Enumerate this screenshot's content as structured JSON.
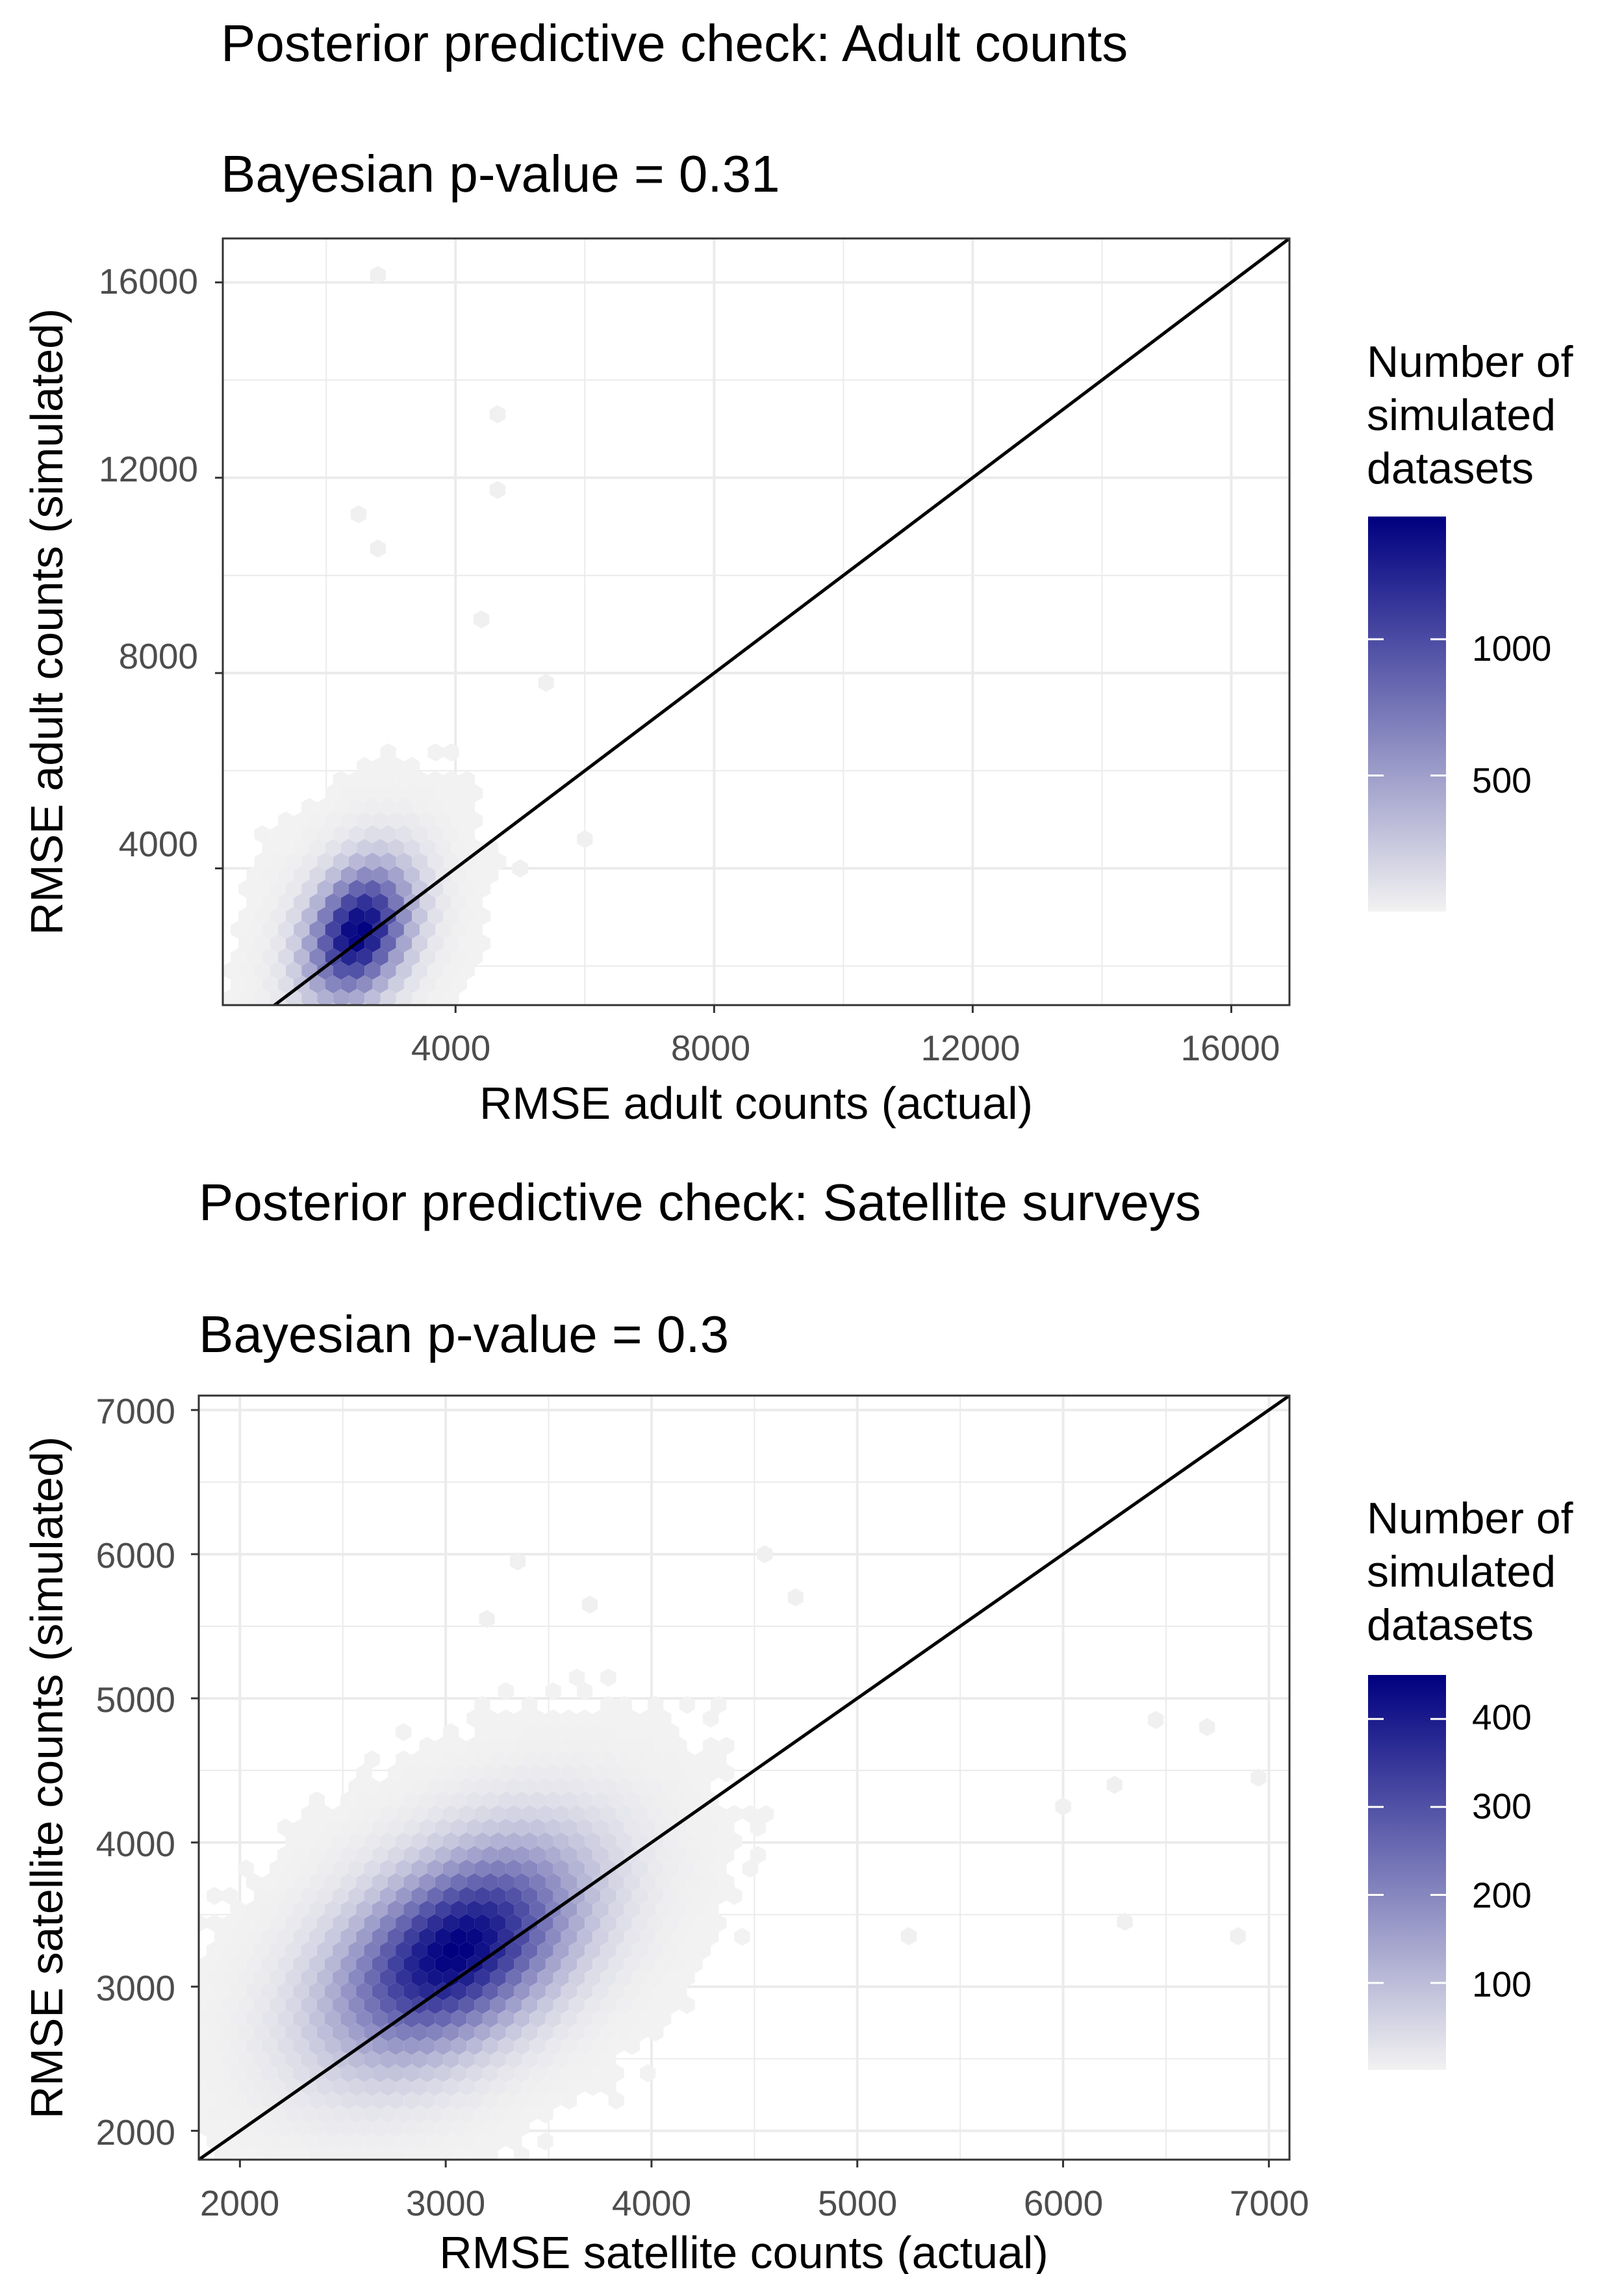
{
  "chart_data": [
    {
      "type": "hexbin",
      "title": "Posterior predictive check: Adult counts",
      "subtitle": "Bayesian p-value = 0.31",
      "xlabel": "RMSE adult counts (actual)",
      "ylabel": "RMSE adult counts (simulated)",
      "xlim": [
        400,
        16900
      ],
      "ylim": [
        1200,
        16900
      ],
      "xticks": [
        4000,
        8000,
        12000,
        16000
      ],
      "xtick_labels": [
        "4000",
        "8000",
        "12000",
        "16000"
      ],
      "yticks": [
        4000,
        8000,
        12000,
        16000
      ],
      "ytick_labels": [
        "4000",
        "8000",
        "12000",
        "16000"
      ],
      "grid": true,
      "reference_line": "y = x",
      "legend": {
        "title": "Number of simulated datasets",
        "title_lines": [
          "Number of",
          "simulated",
          "datasets"
        ],
        "position": "right",
        "range": [
          1,
          1450
        ],
        "ticks": [
          500,
          1000
        ],
        "tick_labels": [
          "500",
          "1000"
        ],
        "colors": [
          "#f2f2f2",
          "#000080"
        ]
      },
      "density": {
        "center": [
          2500,
          2700
        ],
        "sd_x": 520,
        "sd_y": 900,
        "rho": 0.3,
        "peak_count": 1450,
        "n_datasets": 12000
      },
      "outliers": [
        [
          2800,
          16150
        ],
        [
          4650,
          13300
        ],
        [
          4650,
          11750
        ],
        [
          2500,
          11250
        ],
        [
          2800,
          10550
        ],
        [
          4400,
          9100
        ],
        [
          5400,
          7800
        ],
        [
          6000,
          4600
        ],
        [
          5000,
          4000
        ]
      ]
    },
    {
      "type": "hexbin",
      "title": "Posterior predictive check: Satellite surveys",
      "subtitle": "Bayesian p-value = 0.3",
      "xlabel": "RMSE satellite counts (actual)",
      "ylabel": "RMSE satellite counts (simulated)",
      "xlim": [
        1800,
        7100
      ],
      "ylim": [
        1800,
        7100
      ],
      "xticks": [
        2000,
        3000,
        4000,
        5000,
        6000,
        7000
      ],
      "xtick_labels": [
        "2000",
        "3000",
        "4000",
        "5000",
        "6000",
        "7000"
      ],
      "yticks": [
        2000,
        3000,
        4000,
        5000,
        6000,
        7000
      ],
      "ytick_labels": [
        "2000",
        "3000",
        "4000",
        "5000",
        "6000",
        "7000"
      ],
      "grid": true,
      "reference_line": "y = x",
      "legend": {
        "title": "Number of simulated datasets",
        "title_lines": [
          "Number of",
          "simulated",
          "datasets"
        ],
        "position": "right",
        "range": [
          1,
          450
        ],
        "ticks": [
          100,
          200,
          300,
          400
        ],
        "tick_labels": [
          "100",
          "200",
          "300",
          "400"
        ],
        "colors": [
          "#f2f2f2",
          "#000080"
        ]
      },
      "density": {
        "center": [
          3050,
          3250
        ],
        "sd_x": 380,
        "sd_y": 470,
        "rho": 0.45,
        "peak_count": 450,
        "n_datasets": 12000
      },
      "outliers": [
        [
          3350,
          5950
        ],
        [
          3700,
          5650
        ],
        [
          4550,
          6000
        ],
        [
          4700,
          5700
        ],
        [
          3200,
          5550
        ],
        [
          6450,
          4850
        ],
        [
          6700,
          4800
        ],
        [
          6950,
          4450
        ],
        [
          6300,
          3450
        ],
        [
          6850,
          3350
        ],
        [
          5250,
          3350
        ],
        [
          6000,
          4250
        ],
        [
          6250,
          4400
        ]
      ]
    }
  ]
}
